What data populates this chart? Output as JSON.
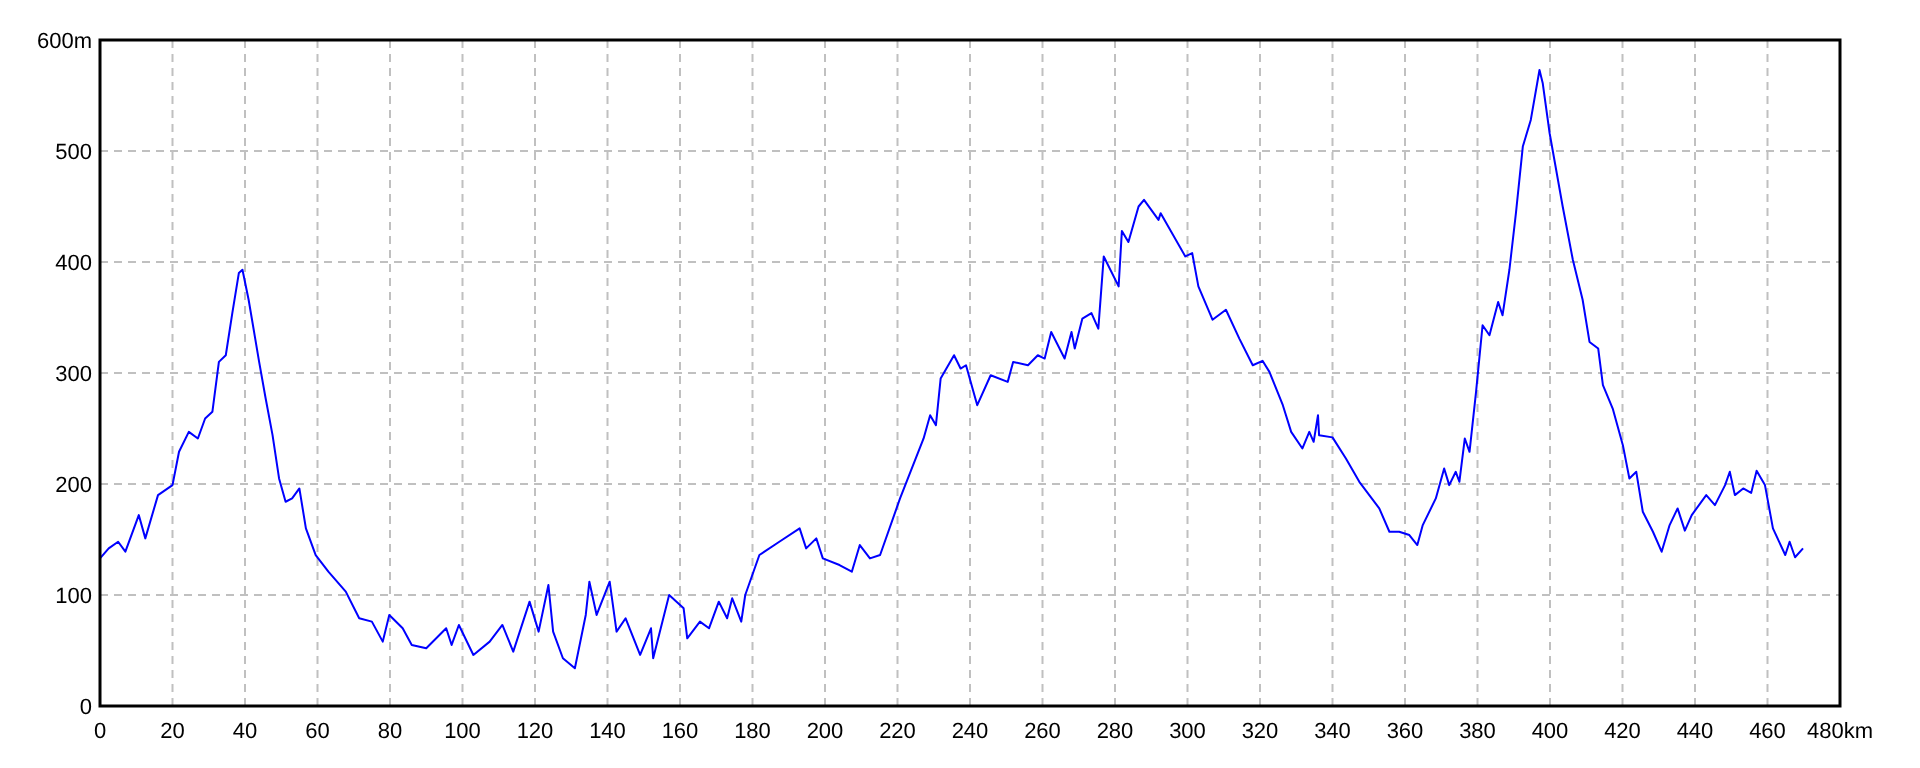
{
  "chart_data": {
    "type": "line",
    "xlim": [
      0,
      480
    ],
    "ylim": [
      0,
      600
    ],
    "xticks": [
      0,
      20,
      40,
      60,
      80,
      100,
      120,
      140,
      160,
      180,
      200,
      220,
      240,
      260,
      280,
      300,
      320,
      340,
      360,
      380,
      400,
      420,
      440,
      460,
      {
        "value": 480,
        "label": "480km"
      }
    ],
    "yticks": [
      0,
      100,
      200,
      300,
      400,
      500,
      {
        "value": 600,
        "label": "600m"
      }
    ],
    "grid": true,
    "line_style": "solid",
    "marker": "none",
    "series": [
      {
        "color": "#0000ff",
        "x": [
          0,
          2.4,
          5,
          7,
          10.7,
          12.5,
          16,
          20,
          21.8,
          24.5,
          27,
          29,
          31,
          32.8,
          34.7,
          36.5,
          38.3,
          39.3,
          41,
          43.9,
          45.7,
          47.6,
          49.4,
          51.2,
          53,
          55,
          56.8,
          59.5,
          63,
          67.8,
          71.5,
          75,
          78,
          79.8,
          83.5,
          86,
          90,
          95.5,
          97,
          99,
          103,
          107.5,
          111,
          114,
          118.5,
          121,
          123.7,
          125,
          127.7,
          131,
          134,
          135,
          137,
          140.6,
          142.5,
          145,
          149,
          152,
          152.6,
          157,
          161,
          162,
          165.5,
          168,
          170.7,
          173,
          174.4,
          176.9,
          178,
          181.9,
          187.4,
          193,
          194.8,
          197.6,
          199.4,
          204,
          207.4,
          209.6,
          212.4,
          215.2,
          220.7,
          227.2,
          229,
          230.6,
          231.9,
          235.6,
          237.4,
          238.9,
          242,
          245.7,
          250.4,
          251.9,
          256,
          258.7,
          260.6,
          262.4,
          266.1,
          268,
          268.9,
          271,
          273.5,
          275.4,
          276.9,
          281,
          281.9,
          283.7,
          286.5,
          288,
          292,
          292.6,
          299.4,
          301.3,
          303,
          306.9,
          310.6,
          314.3,
          318,
          320.7,
          322.6,
          326.3,
          328.6,
          331.7,
          333.6,
          334.8,
          336,
          336.3,
          340,
          343.7,
          347.4,
          352.9,
          355.7,
          358.4,
          361.2,
          363.4,
          364.9,
          368.5,
          370.8,
          372.2,
          374,
          375,
          376.5,
          377.8,
          379.6,
          381.4,
          383.3,
          385.7,
          386.9,
          388.8,
          390.6,
          392.5,
          394.7,
          397.1,
          398,
          399.9,
          403.5,
          406.3,
          409,
          410.9,
          413.3,
          414.6,
          417.3,
          420.1,
          421.9,
          423.8,
          425.6,
          428.4,
          430.8,
          433,
          435.2,
          437.2,
          439.1,
          443.1,
          445.5,
          448.3,
          449.6,
          451,
          453.3,
          455.5,
          457,
          459.3,
          461.5,
          464.9,
          466.1,
          467.6,
          469.8
        ],
        "values": [
          133,
          142,
          148,
          139,
          172,
          151,
          190,
          199,
          229,
          247,
          241,
          259,
          265,
          310,
          316,
          354,
          390,
          393,
          366,
          310,
          277,
          244,
          205,
          184,
          187,
          196,
          160,
          136,
          121,
          103,
          79,
          76,
          58,
          82,
          70,
          55,
          52,
          70,
          55,
          73,
          46,
          58,
          73,
          49,
          94,
          67,
          109,
          67,
          43,
          34,
          82,
          112,
          82,
          112,
          67,
          79,
          46,
          70,
          43,
          100,
          88,
          61,
          76,
          70,
          94,
          79,
          97,
          76,
          100,
          136,
          148,
          160,
          142,
          151,
          133,
          127,
          121,
          145,
          133,
          136,
          187,
          241,
          262,
          253,
          295,
          316,
          304,
          307,
          271,
          298,
          292,
          310,
          307,
          316,
          313,
          337,
          313,
          337,
          322,
          349,
          354,
          340,
          405,
          378,
          428,
          418,
          450,
          456,
          438,
          444,
          405,
          408,
          378,
          348,
          357,
          331,
          307,
          311,
          301,
          271,
          247,
          232,
          247,
          238,
          262,
          244,
          242,
          223,
          202,
          178,
          157,
          157,
          154,
          145,
          163,
          187,
          214,
          199,
          211,
          202,
          241,
          229,
          283,
          343,
          334,
          364,
          352,
          393,
          444,
          504,
          528,
          573,
          561,
          516,
          450,
          402,
          366,
          328,
          322,
          289,
          268,
          235,
          205,
          211,
          175,
          157,
          139,
          163,
          178,
          158,
          172,
          190,
          181,
          199,
          211,
          190,
          196,
          192,
          212,
          199,
          160,
          136,
          148,
          134,
          142
        ]
      }
    ]
  }
}
